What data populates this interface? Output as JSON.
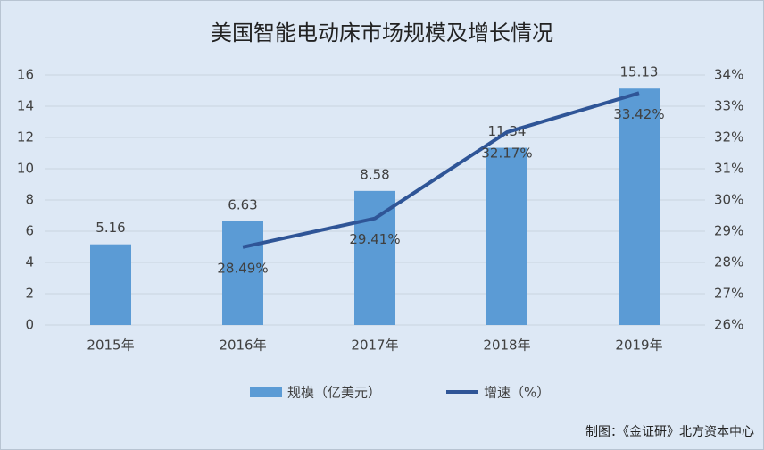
{
  "chart_data": {
    "type": "bar",
    "title": "美国智能电动床市场规模及增长情况",
    "categories": [
      "2015年",
      "2016年",
      "2017年",
      "2018年",
      "2019年"
    ],
    "series": [
      {
        "name": "规模（亿美元）",
        "color": "#5b9bd5",
        "values": [
          5.16,
          6.63,
          8.58,
          11.34,
          15.13
        ]
      },
      {
        "name": "增速（%）",
        "color": "#2f5597",
        "type": "line",
        "axis": "y2",
        "values": [
          null,
          28.49,
          29.41,
          32.17,
          33.42
        ],
        "value_labels": [
          null,
          "28.49%",
          "29.41%",
          "32.17%",
          "33.42%"
        ]
      }
    ],
    "ylim": [
      0,
      16
    ],
    "yticks": [
      0,
      2,
      4,
      6,
      8,
      10,
      12,
      14,
      16
    ],
    "y2lim": [
      26,
      34
    ],
    "y2ticks": [
      {
        "value": 26,
        "label": "26%"
      },
      {
        "value": 27,
        "label": "27%"
      },
      {
        "value": 28,
        "label": "28%"
      },
      {
        "value": 29,
        "label": "29%"
      },
      {
        "value": 30,
        "label": "30%"
      },
      {
        "value": 31,
        "label": "31%"
      },
      {
        "value": 32,
        "label": "32%"
      },
      {
        "value": 33,
        "label": "33%"
      },
      {
        "value": 34,
        "label": "34%"
      }
    ],
    "grid": true,
    "legend": "bottom",
    "source": "制图：《金证研》北方资本中心"
  }
}
